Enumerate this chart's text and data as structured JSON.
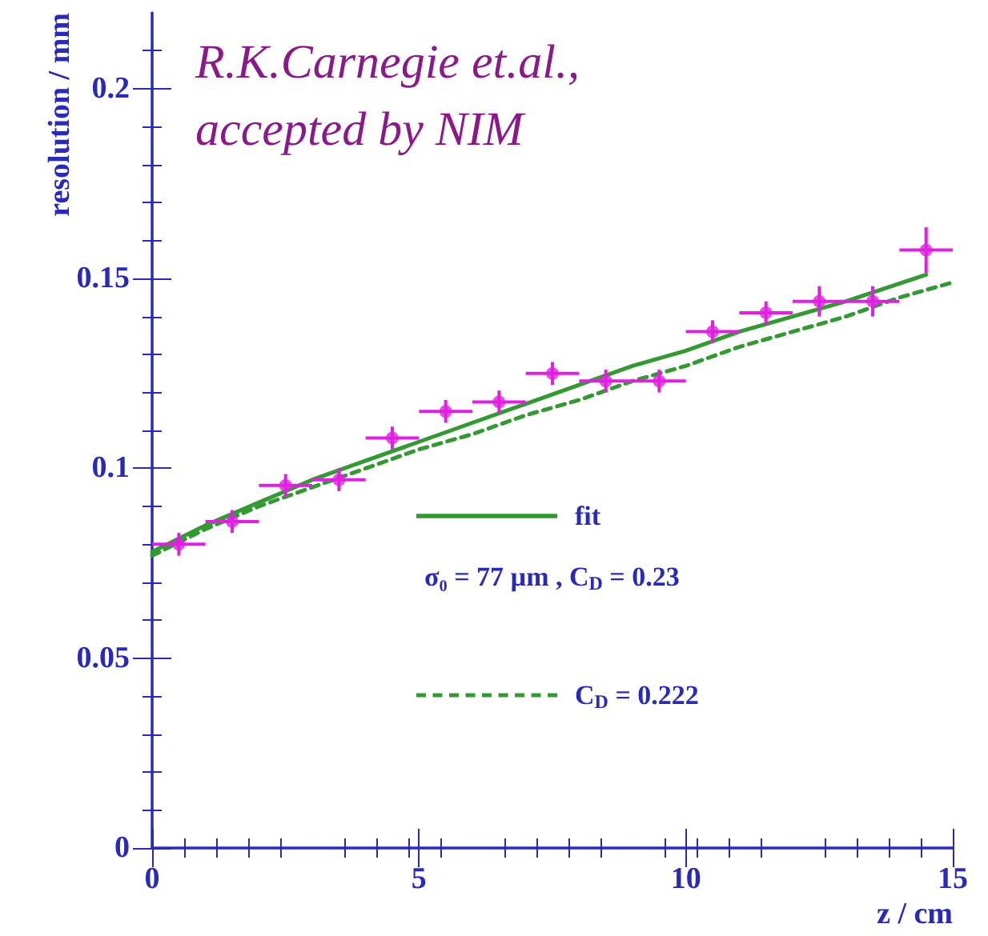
{
  "chart_data": {
    "type": "scatter",
    "xlabel": "z / cm",
    "ylabel": "resolution / mm",
    "xlim": [
      0,
      15
    ],
    "xticks": [
      0,
      5,
      10,
      15
    ],
    "ylim": [
      0,
      0.22
    ],
    "yticks": [
      0,
      0.05,
      0.1,
      0.15,
      0.2
    ],
    "grid": false,
    "legend": "bottom right",
    "annotations": [
      "R.K.Carnegie et.al.,\naccepted by NIM",
      "σ₀ = 77 µm , C$_{D}$ = 0.23"
    ],
    "series": [
      {
        "color": "#e020e0",
        "marker": "circle",
        "x": [
          0.5,
          1.5,
          2.5,
          3.5,
          4.5,
          5.5,
          6.5,
          7.5,
          8.5,
          9.5,
          10.5,
          11.5,
          12.5,
          13.5,
          14.5
        ],
        "values": [
          0.08,
          0.086,
          0.0955,
          0.097,
          0.108,
          0.115,
          0.1175,
          0.125,
          0.123,
          0.123,
          0.136,
          0.141,
          0.144,
          0.144,
          0.1575
        ],
        "errors": [
          0.003,
          0.003,
          0.003,
          0.003,
          0.003,
          0.003,
          0.003,
          0.003,
          0.003,
          0.003,
          0.003,
          0.003,
          0.004,
          0.004,
          0.006
        ],
        "xerrors": [
          0.5,
          0.5,
          0.5,
          0.5,
          0.5,
          0.5,
          0.5,
          0.5,
          0.5,
          0.5,
          0.5,
          0.5,
          0.5,
          0.5,
          0.5
        ]
      },
      {
        "type": "line",
        "name": "fit",
        "color": "#339933",
        "marker": "none",
        "line_style": "solid",
        "x": [
          0,
          1,
          2,
          3,
          4,
          5,
          6,
          7,
          8,
          9,
          10,
          11,
          12,
          13,
          14.5
        ],
        "values": [
          0.078,
          0.085,
          0.091,
          0.097,
          0.102,
          0.107,
          0.112,
          0.117,
          0.122,
          0.127,
          0.131,
          0.136,
          0.14,
          0.144,
          0.151
        ]
      },
      {
        "type": "line",
        "name": "C$_{D}$ = 0.222",
        "color": "#339933",
        "marker": "none",
        "line_style": "dashed",
        "x": [
          0,
          1,
          2,
          3,
          4,
          5,
          6,
          7,
          8,
          9,
          10,
          11,
          12,
          13,
          14,
          15
        ],
        "values": [
          0.077,
          0.084,
          0.09,
          0.095,
          0.1,
          0.105,
          0.109,
          0.114,
          0.118,
          0.123,
          0.127,
          0.132,
          0.136,
          0.14,
          0.145,
          0.149
        ]
      }
    ]
  }
}
